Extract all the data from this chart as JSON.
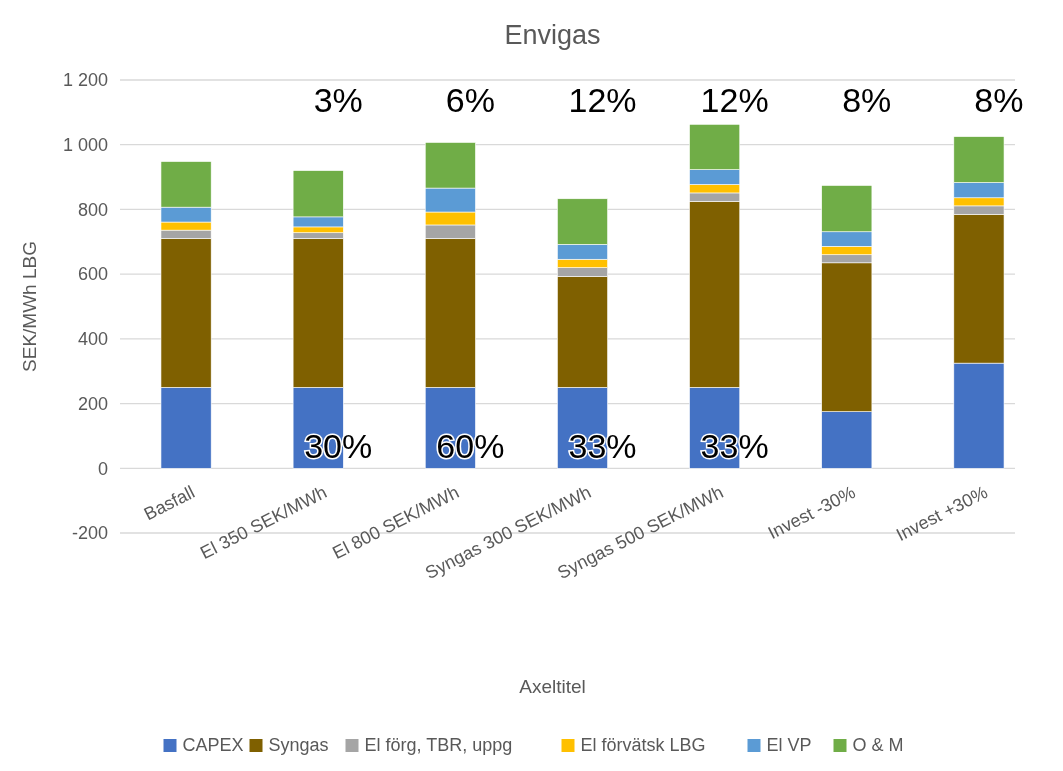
{
  "chart_data": {
    "type": "bar",
    "title": "Envigas",
    "xlabel": "Axeltitel",
    "ylabel": "SEK/MWh LBG",
    "stacked": true,
    "categories": [
      "Basfall",
      "El 350 SEK/MWh",
      "El 800 SEK/MWh",
      "Syngas 300 SEK/MWh",
      "Syngas 500 SEK/MWh",
      "Invest -30%",
      "Invest +30%"
    ],
    "series": [
      {
        "name": "CAPEX",
        "color": "#4472c4",
        "values": [
          250,
          250,
          250,
          250,
          250,
          175,
          325
        ]
      },
      {
        "name": "Syngas",
        "color": "#7f6000",
        "values": [
          460,
          460,
          460,
          343,
          575,
          460,
          460
        ]
      },
      {
        "name": "El förg, TBR, uppg",
        "color": "#a5a5a5",
        "values": [
          26,
          18,
          42,
          27,
          26,
          25,
          26
        ]
      },
      {
        "name": "El förvätsk LBG",
        "color": "#ffc000",
        "values": [
          25,
          18,
          40,
          26,
          26,
          26,
          25
        ]
      },
      {
        "name": "El VP",
        "color": "#5b9bd5",
        "values": [
          46,
          31,
          74,
          46,
          46,
          45,
          47
        ]
      },
      {
        "name": "O & M",
        "color": "#70ad47",
        "values": [
          141,
          143,
          141,
          141,
          140,
          143,
          142
        ]
      }
    ],
    "ylim": [
      -200,
      1200
    ],
    "yticks": [
      {
        "value": -200,
        "label": "-200"
      },
      0,
      200,
      400,
      600,
      800,
      {
        "value": 1000,
        "label": "1 000"
      },
      {
        "value": 1200,
        "label": "1 200"
      }
    ],
    "grid": "y",
    "legend": "bottom",
    "annotations": [
      "3%",
      "6%",
      "12%",
      "12%",
      "8%",
      "8%",
      "30%",
      "60%",
      "33%",
      "33%"
    ]
  }
}
